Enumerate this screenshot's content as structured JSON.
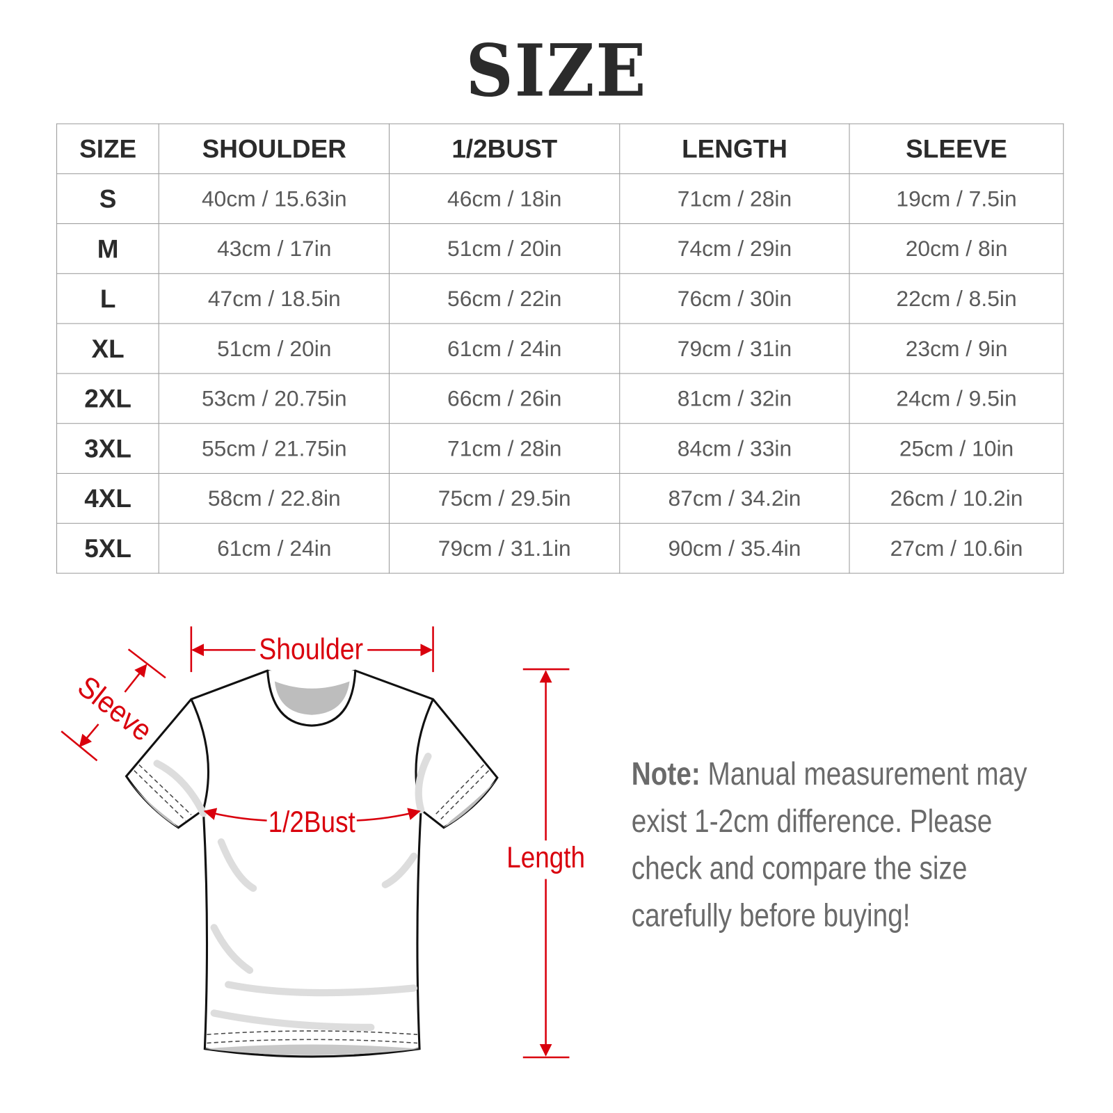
{
  "title": "SIZE",
  "table": {
    "headers": [
      "SIZE",
      "SHOULDER",
      "1/2BUST",
      "LENGTH",
      "SLEEVE"
    ],
    "rows": [
      [
        "S",
        "40cm / 15.63in",
        "46cm / 18in",
        "71cm / 28in",
        "19cm / 7.5in"
      ],
      [
        "M",
        "43cm / 17in",
        "51cm / 20in",
        "74cm / 29in",
        "20cm / 8in"
      ],
      [
        "L",
        "47cm / 18.5in",
        "56cm / 22in",
        "76cm / 30in",
        "22cm / 8.5in"
      ],
      [
        "XL",
        "51cm / 20in",
        "61cm / 24in",
        "79cm / 31in",
        "23cm / 9in"
      ],
      [
        "2XL",
        "53cm / 20.75in",
        "66cm / 26in",
        "81cm / 32in",
        "24cm / 9.5in"
      ],
      [
        "3XL",
        "55cm / 21.75in",
        "71cm / 28in",
        "84cm / 33in",
        "25cm / 10in"
      ],
      [
        "4XL",
        "58cm / 22.8in",
        "75cm / 29.5in",
        "87cm / 34.2in",
        "26cm / 10.2in"
      ],
      [
        "5XL",
        "61cm / 24in",
        "79cm / 31.1in",
        "90cm / 35.4in",
        "27cm / 10.6in"
      ]
    ]
  },
  "diagram": {
    "shoulder_label": "Shoulder",
    "sleeve_label": "Sleeve",
    "bust_label": "1/2Bust",
    "length_label": "Length",
    "accent_color": "#d9000d"
  },
  "note": {
    "prefix": "Note:",
    "text": " Manual measurement may exist 1-2cm difference. Please check and compare the size carefully before buying!"
  }
}
